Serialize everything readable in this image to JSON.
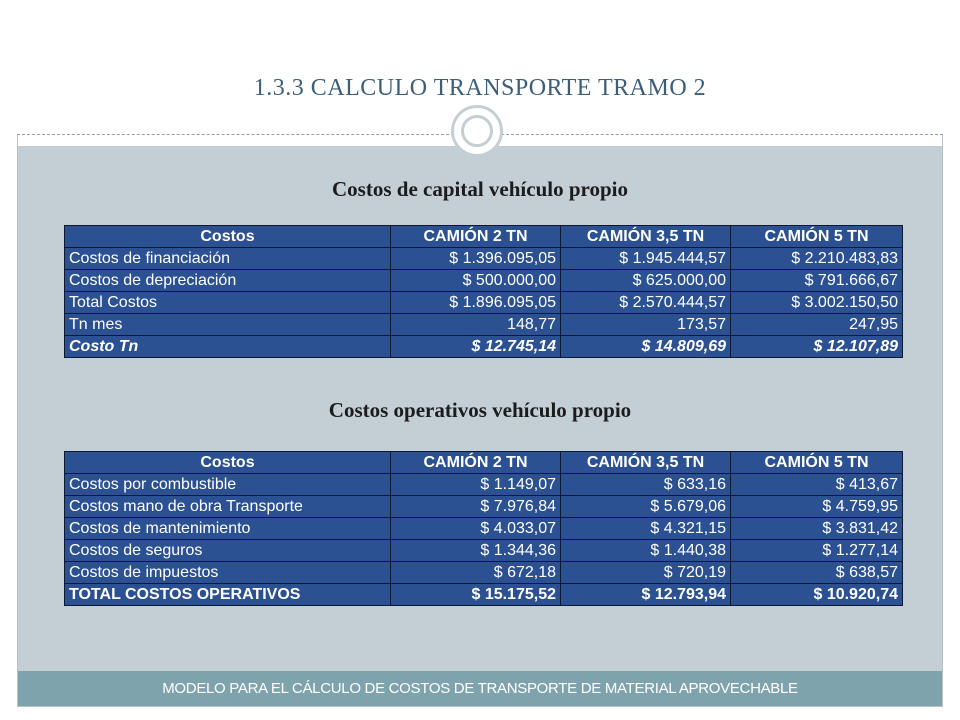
{
  "slide": {
    "title": "1.3.3 CALCULO TRANSPORTE  TRAMO 2",
    "footer": "MODELO PARA EL CÁLCULO DE COSTOS DE TRANSPORTE DE MATERIAL APROVECHABLE"
  },
  "capital_table": {
    "title": "Costos de capital vehículo propio",
    "headers": [
      "Costos",
      "CAMIÓN 2 TN",
      "CAMIÓN 3,5 TN",
      "CAMIÓN 5 TN"
    ],
    "rows": [
      [
        "Costos de financiación",
        "$ 1.396.095,05",
        "$ 1.945.444,57",
        "$ 2.210.483,83"
      ],
      [
        "Costos de depreciación",
        "$ 500.000,00",
        "$ 625.000,00",
        "$ 791.666,67"
      ],
      [
        "Total Costos",
        "$ 1.896.095,05",
        "$ 2.570.444,57",
        "$ 3.002.150,50"
      ],
      [
        "Tn mes",
        "148,77",
        "173,57",
        "247,95"
      ],
      [
        "Costo Tn",
        "$ 12.745,14",
        "$ 14.809,69",
        "$ 12.107,89"
      ]
    ]
  },
  "operating_table": {
    "title": "Costos operativos vehículo propio",
    "headers": [
      "Costos",
      "CAMIÓN 2 TN",
      "CAMIÓN 3,5 TN",
      "CAMIÓN 5 TN"
    ],
    "rows": [
      [
        "Costos por combustible",
        "$ 1.149,07",
        "$ 633,16",
        "$ 413,67"
      ],
      [
        "Costos mano de obra Transporte",
        "$ 7.976,84",
        "$ 5.679,06",
        "$ 4.759,95"
      ],
      [
        "Costos de mantenimiento",
        "$ 4.033,07",
        "$ 4.321,15",
        "$ 3.831,42"
      ],
      [
        "Costos de seguros",
        "$ 1.344,36",
        "$ 1.440,38",
        "$ 1.277,14"
      ],
      [
        "Costos de impuestos",
        "$ 672,18",
        "$ 720,19",
        "$ 638,57"
      ],
      [
        "TOTAL COSTOS OPERATIVOS",
        "$ 15.175,52",
        "$ 12.793,94",
        "$ 10.920,74"
      ]
    ]
  },
  "colors": {
    "table_fill": "#2b5192",
    "content_background": "#c3ced5",
    "footer_background": "#7fa3ad",
    "title_color": "#3b5e7a"
  }
}
